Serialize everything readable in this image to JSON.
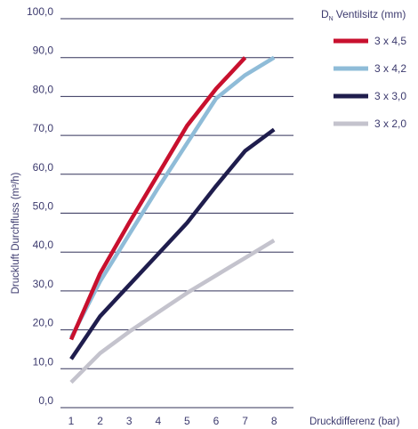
{
  "chart_data": {
    "type": "line",
    "title": "",
    "ylabel": "Druckluft Durchfluss (m³/h)",
    "xlabel": "Druckdifferenz (bar)",
    "legend_title": "Ventilsitz (mm)",
    "legend_title_symbol": "D",
    "legend_title_subscript": "N",
    "legend_placement": "top-right",
    "grid": true,
    "x": [
      1,
      2,
      3,
      4,
      5,
      6,
      7,
      8
    ],
    "x_tick_labels": [
      "1",
      "2",
      "3",
      "4",
      "5",
      "6",
      "7",
      "8"
    ],
    "ylim": [
      0,
      100
    ],
    "y_ticks": [
      0,
      10,
      20,
      30,
      40,
      50,
      60,
      70,
      80,
      90,
      100
    ],
    "y_tick_labels": [
      "0,0",
      "10,0",
      "20,0",
      "30,0",
      "40,0",
      "50,0",
      "60,0",
      "70,0",
      "80,0",
      "90,0",
      "100,0"
    ],
    "series": [
      {
        "name": "3 x 4,5",
        "color": "#c8102e",
        "x": [
          1,
          2,
          3,
          4,
          5,
          6,
          7
        ],
        "values": [
          17.5,
          34.5,
          47.5,
          60.0,
          72.5,
          82.0,
          90.0
        ]
      },
      {
        "name": "3 x 4,2",
        "color": "#8fbcd8",
        "x": [
          1,
          2,
          3,
          4,
          5,
          6,
          7,
          8
        ],
        "values": [
          18.0,
          32.5,
          44.5,
          56.5,
          68.0,
          79.5,
          85.5,
          90.0
        ]
      },
      {
        "name": "3 x 3,0",
        "color": "#1f1d4d",
        "x": [
          1,
          2,
          3,
          4,
          5,
          6,
          7,
          8
        ],
        "values": [
          12.5,
          23.5,
          31.5,
          39.5,
          47.5,
          57.0,
          66.0,
          71.5
        ]
      },
      {
        "name": "3 x 2,0",
        "color": "#c4c3cd",
        "x": [
          1,
          2,
          3,
          4,
          5,
          6,
          7,
          8
        ],
        "values": [
          6.5,
          14.0,
          19.5,
          24.5,
          29.5,
          34.0,
          38.5,
          43.0
        ]
      }
    ]
  }
}
